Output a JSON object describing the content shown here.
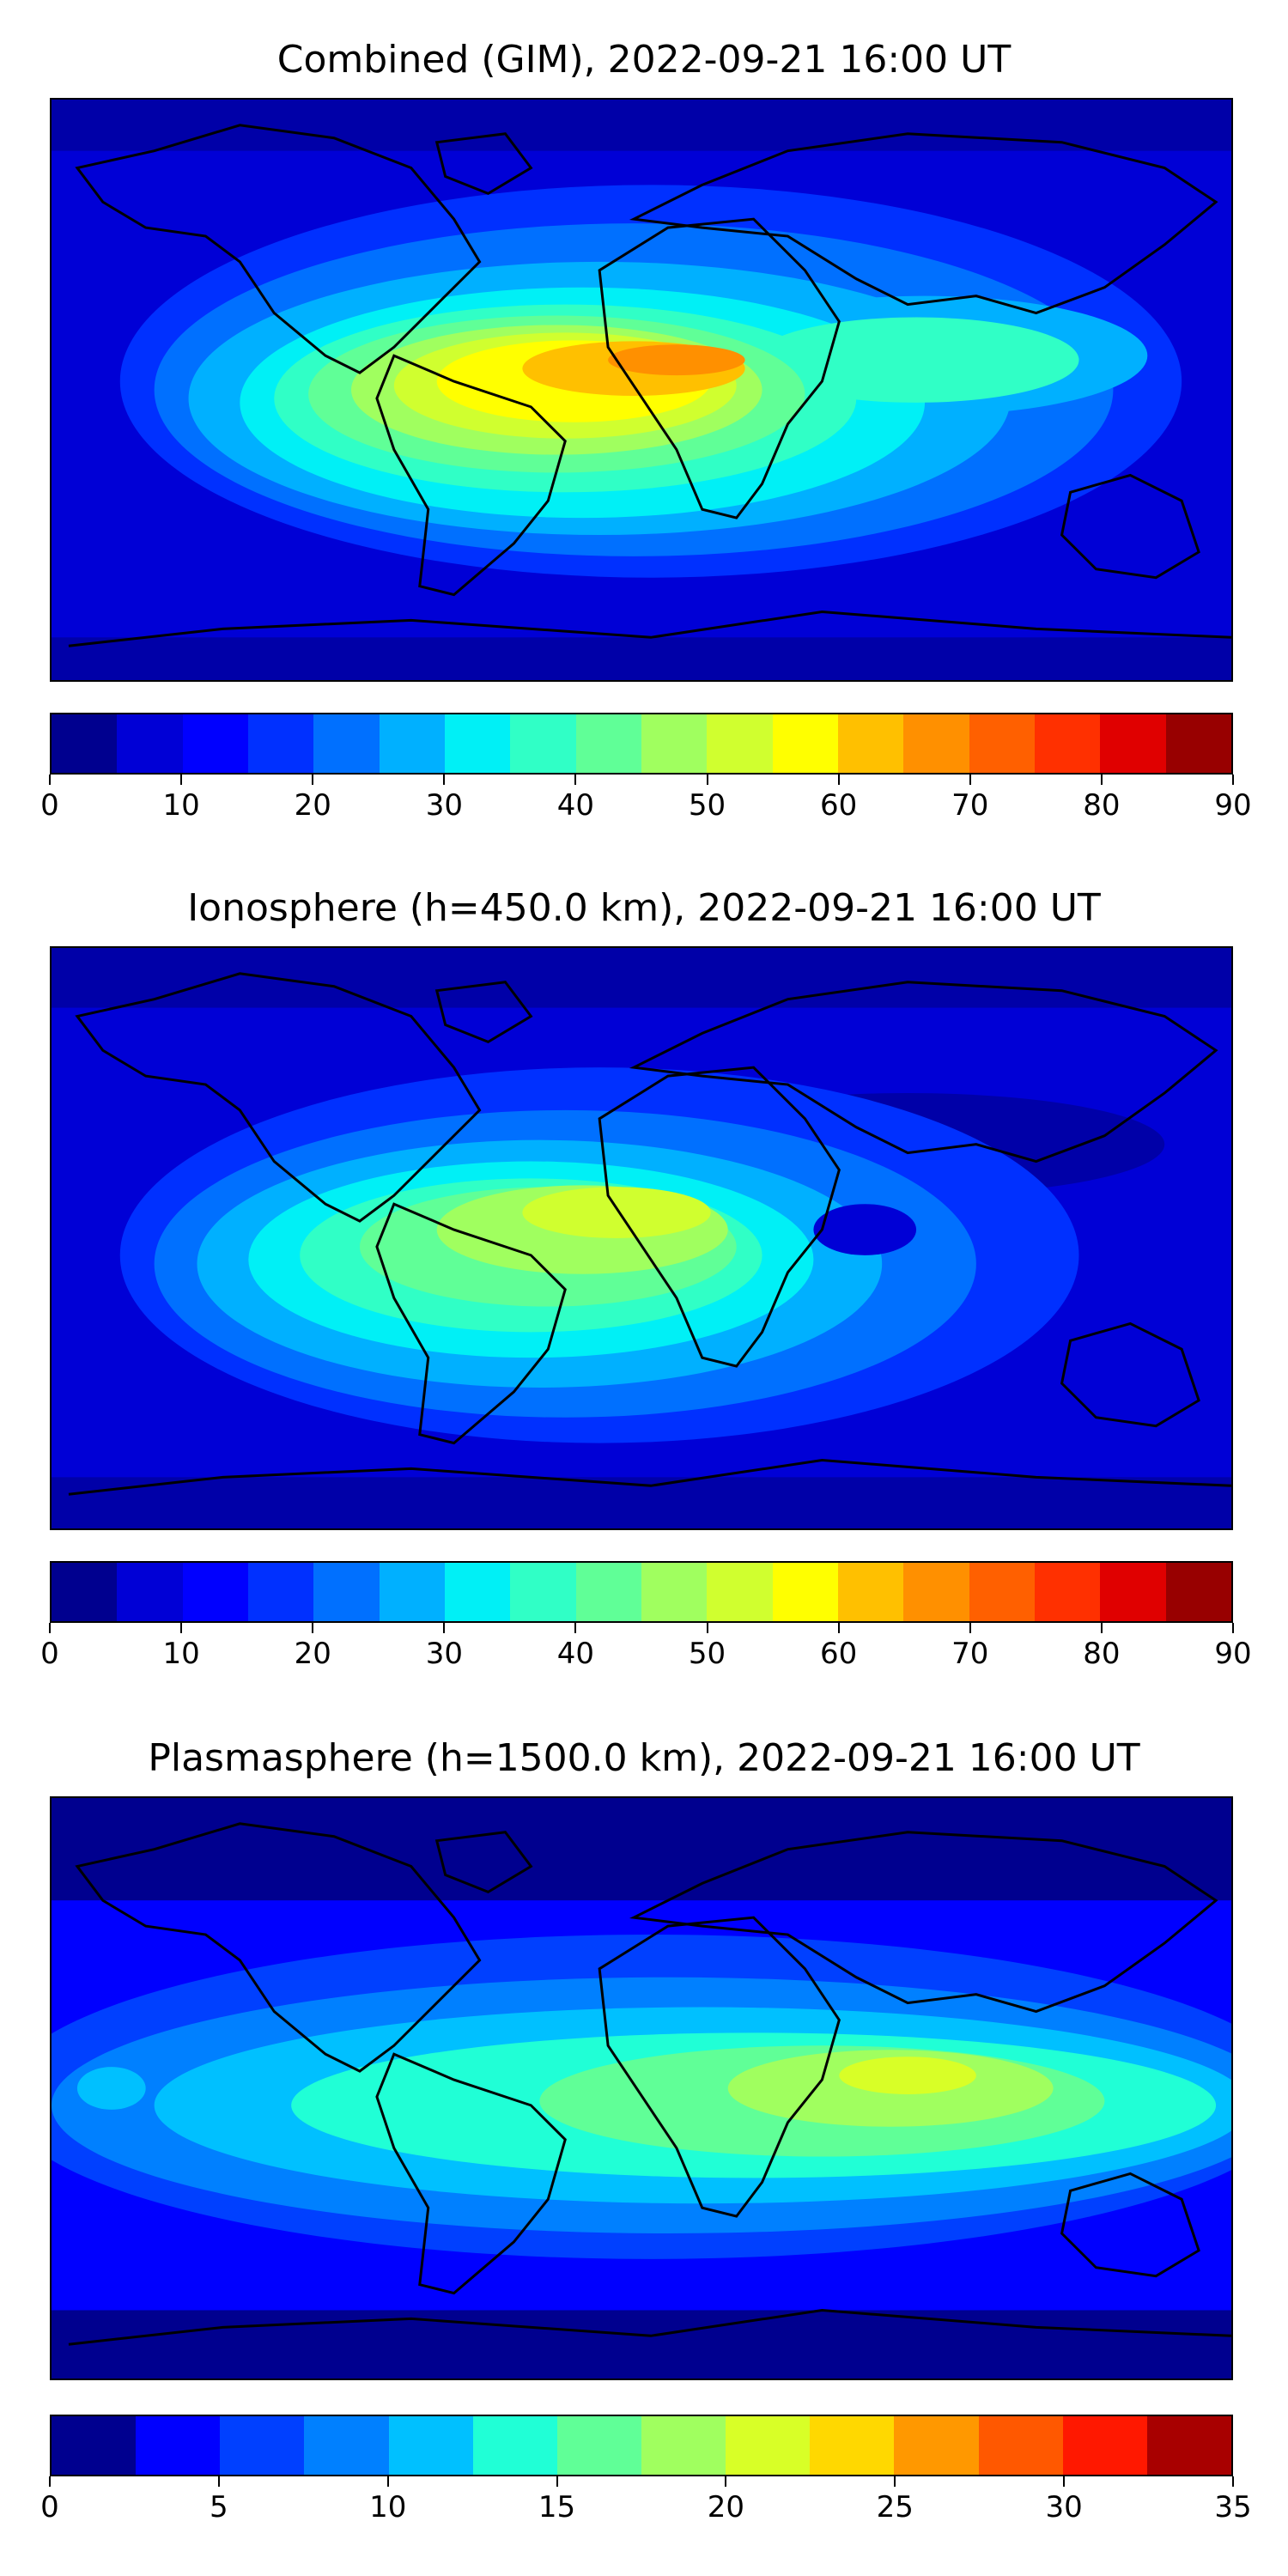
{
  "panels": [
    {
      "title": "Combined (GIM), 2022-09-21 16:00 UT",
      "colorbar": {
        "ticks": [
          "0",
          "10",
          "20",
          "30",
          "40",
          "50",
          "60",
          "70",
          "80",
          "90"
        ],
        "colors": [
          "#00008f",
          "#0000d6",
          "#0000ff",
          "#0030ff",
          "#0070ff",
          "#00b0ff",
          "#00f0f6",
          "#30ffc6",
          "#60ff97",
          "#a0ff5f",
          "#d0ff2f",
          "#ffff00",
          "#ffc000",
          "#ff9000",
          "#ff6000",
          "#ff3000",
          "#e00000",
          "#980000"
        ]
      },
      "chart_data": {
        "type": "heatmap",
        "title": "Combined (GIM), 2022-09-21 16:00 UT",
        "range": [
          0,
          90
        ],
        "levels": 18
      }
    },
    {
      "title": "Ionosphere  (h=450.0 km), 2022-09-21 16:00 UT",
      "colorbar": {
        "ticks": [
          "0",
          "10",
          "20",
          "30",
          "40",
          "50",
          "60",
          "70",
          "80",
          "90"
        ],
        "colors": [
          "#00008f",
          "#0000d6",
          "#0000ff",
          "#0030ff",
          "#0070ff",
          "#00b0ff",
          "#00f0f6",
          "#30ffc6",
          "#60ff97",
          "#a0ff5f",
          "#d0ff2f",
          "#ffff00",
          "#ffc000",
          "#ff9000",
          "#ff6000",
          "#ff3000",
          "#e00000",
          "#980000"
        ]
      },
      "chart_data": {
        "type": "heatmap",
        "title": "Ionosphere  (h=450.0 km), 2022-09-21 16:00 UT",
        "range": [
          0,
          90
        ],
        "levels": 18
      }
    },
    {
      "title": "Plasmasphere (h=1500.0 km), 2022-09-21 16:00 UT",
      "colorbar": {
        "ticks": [
          "0",
          "5",
          "10",
          "15",
          "20",
          "25",
          "30",
          "35"
        ],
        "colors": [
          "#00008f",
          "#0000ff",
          "#0040ff",
          "#0080ff",
          "#00c0ff",
          "#20ffd6",
          "#60ff97",
          "#a0ff5f",
          "#d8ff27",
          "#ffd800",
          "#ff9800",
          "#ff5800",
          "#ff1800",
          "#a80000"
        ]
      },
      "chart_data": {
        "type": "heatmap",
        "title": "Plasmasphere (h=1500.0 km), 2022-09-21 16:00 UT",
        "range": [
          0,
          35
        ],
        "levels": 14
      }
    }
  ]
}
